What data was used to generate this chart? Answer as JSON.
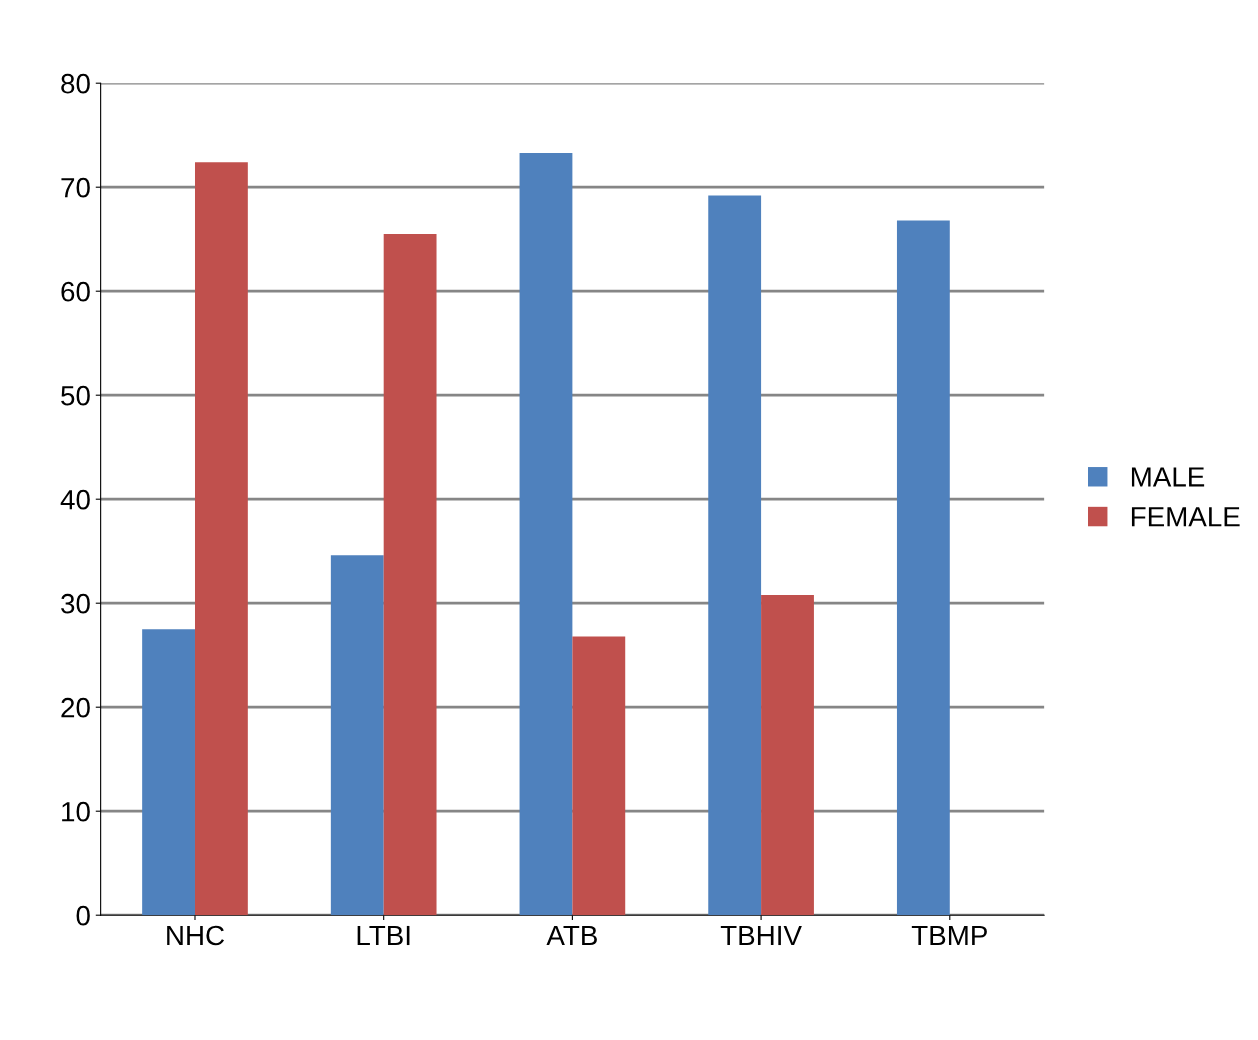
{
  "chart_data": {
    "type": "bar",
    "categories": [
      "NHC",
      "LTBI",
      "ATB",
      "TBHIV",
      "TBMP"
    ],
    "series": [
      {
        "name": "MALE",
        "color": "#4f81bd",
        "values": [
          27.5,
          34.6,
          73.3,
          69.2,
          66.8
        ]
      },
      {
        "name": "FEMALE",
        "color": "#c0504d",
        "values": [
          72.4,
          65.5,
          26.8,
          30.8,
          0
        ]
      }
    ],
    "ylim": [
      0,
      80
    ],
    "yticks": [
      0,
      10,
      20,
      30,
      40,
      50,
      60,
      70,
      80
    ],
    "grid": "y",
    "legend": "right"
  }
}
